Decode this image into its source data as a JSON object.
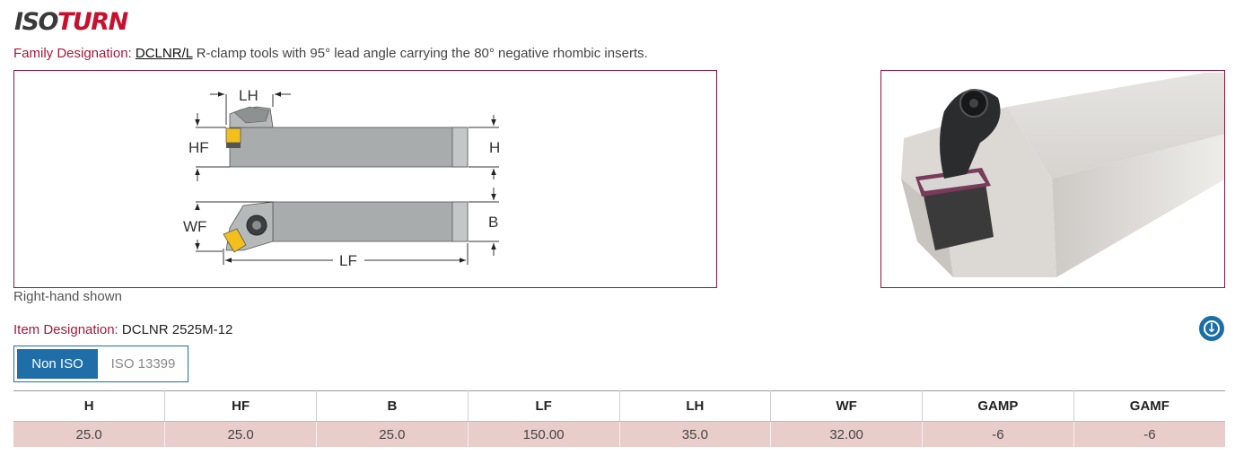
{
  "brand": {
    "part1": "ISO",
    "part2": "TURN"
  },
  "family": {
    "label": "Family Designation:",
    "code": "DCLNR/L",
    "description": "R-clamp tools with 95° lead angle carrying the 80° negative rhombic inserts."
  },
  "diagram": {
    "dim_lh": "LH",
    "dim_hf": "HF",
    "dim_h": "H",
    "dim_wf": "WF",
    "dim_b": "B",
    "dim_lf": "LF"
  },
  "caption": "Right-hand shown",
  "item": {
    "label": "Item Designation:",
    "value": "DCLNR 2525M-12"
  },
  "toggle": {
    "option_1": "Non ISO",
    "option_2": "ISO 13399",
    "selected": "Non ISO"
  },
  "table": {
    "headers": [
      "H",
      "HF",
      "B",
      "LF",
      "LH",
      "WF",
      "GAMP",
      "GAMF"
    ],
    "row": [
      "25.0",
      "25.0",
      "25.0",
      "150.00",
      "35.0",
      "32.00",
      "-6",
      "-6"
    ]
  },
  "icons": {
    "download": "download-icon"
  },
  "colors": {
    "accent": "#a6193a",
    "blue": "#1f6ea8",
    "row_bg": "#e9cdcb",
    "insert": "#f3c01b"
  }
}
